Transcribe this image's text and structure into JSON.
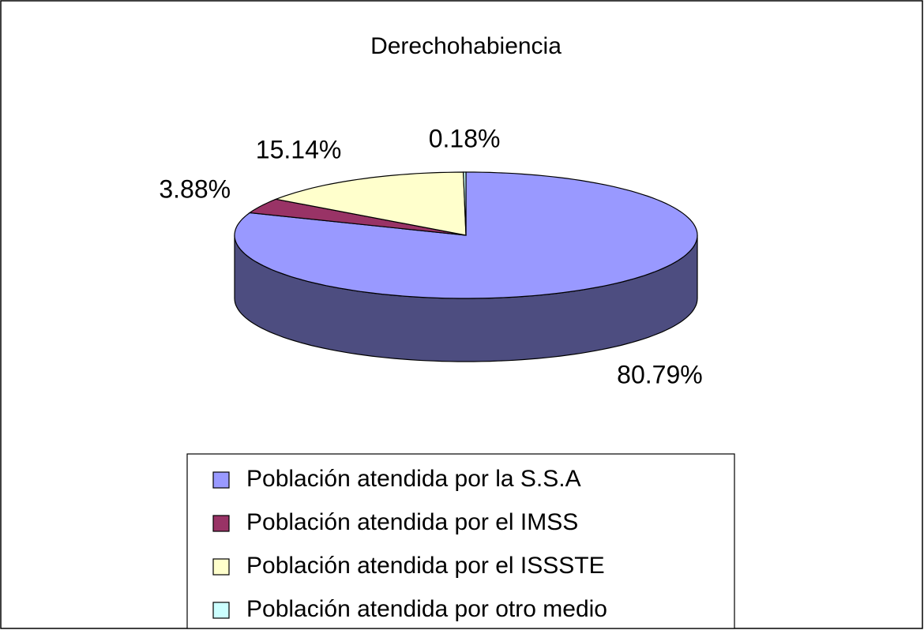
{
  "chart_data": {
    "type": "pie",
    "title": "Derechohabiencia",
    "categories": [
      "Población atendida por la S.S.A",
      "Población atendida por el IMSS",
      "Población atendida por el ISSSTE",
      "Población atendida por otro medio"
    ],
    "values": [
      80.79,
      3.88,
      15.14,
      0.18
    ],
    "value_labels": [
      "80.79%",
      "3.88%",
      "15.14%",
      "0.18%"
    ],
    "colors": [
      "#9999ff",
      "#993366",
      "#ffffcc",
      "#ccffff"
    ],
    "legend": "bottom"
  }
}
